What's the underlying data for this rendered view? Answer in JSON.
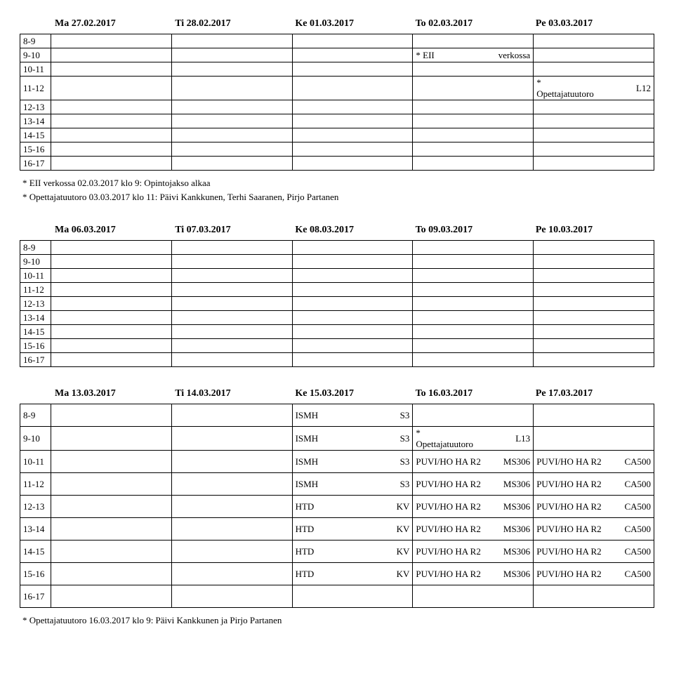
{
  "blocks": [
    {
      "headers": [
        "Ma 27.02.2017",
        "Ti 28.02.2017",
        "Ke 01.03.2017",
        "To 02.03.2017",
        "Pe 03.03.2017"
      ],
      "times": [
        "8-9",
        "9-10",
        "10-11",
        "11-12",
        "12-13",
        "13-14",
        "14-15",
        "15-16",
        "16-17"
      ],
      "tall": false,
      "cells": {
        "1": {
          "3": {
            "left": "* EII",
            "right": "verkossa"
          }
        },
        "3": {
          "4": {
            "left": "*\nOpettajatuutoro",
            "right": "L12",
            "multiline": true
          }
        }
      },
      "notes": [
        "* EII verkossa 02.03.2017 klo 9: Opintojakso alkaa",
        "* Opettajatuutoro 03.03.2017 klo 11: Päivi Kankkunen, Terhi Saaranen, Pirjo Partanen"
      ]
    },
    {
      "headers": [
        "Ma 06.03.2017",
        "Ti 07.03.2017",
        "Ke 08.03.2017",
        "To 09.03.2017",
        "Pe 10.03.2017"
      ],
      "times": [
        "8-9",
        "9-10",
        "10-11",
        "11-12",
        "12-13",
        "13-14",
        "14-15",
        "15-16",
        "16-17"
      ],
      "tall": false,
      "cells": {},
      "notes": []
    },
    {
      "headers": [
        "Ma 13.03.2017",
        "Ti 14.03.2017",
        "Ke 15.03.2017",
        "To 16.03.2017",
        "Pe 17.03.2017"
      ],
      "times": [
        "8-9",
        "9-10",
        "10-11",
        "11-12",
        "12-13",
        "13-14",
        "14-15",
        "15-16",
        "16-17"
      ],
      "tall": true,
      "cells": {
        "0": {
          "2": {
            "left": "ISMH",
            "right": "S3"
          }
        },
        "1": {
          "2": {
            "left": "ISMH",
            "right": "S3"
          },
          "3": {
            "left": "*\nOpettajatuutoro",
            "right": "L13",
            "multiline": true
          }
        },
        "2": {
          "2": {
            "left": "ISMH",
            "right": "S3"
          },
          "3": {
            "left": "PUVI/HO  HA R2",
            "right": "MS306"
          },
          "4": {
            "left": "PUVI/HO  HA R2",
            "right": "CA500"
          }
        },
        "3": {
          "2": {
            "left": "ISMH",
            "right": "S3"
          },
          "3": {
            "left": "PUVI/HO  HA R2",
            "right": "MS306"
          },
          "4": {
            "left": "PUVI/HO  HA R2",
            "right": "CA500"
          }
        },
        "4": {
          "2": {
            "left": "HTD",
            "right": "KV"
          },
          "3": {
            "left": "PUVI/HO  HA R2",
            "right": "MS306"
          },
          "4": {
            "left": "PUVI/HO  HA R2",
            "right": "CA500"
          }
        },
        "5": {
          "2": {
            "left": "HTD",
            "right": "KV"
          },
          "3": {
            "left": "PUVI/HO  HA R2",
            "right": "MS306"
          },
          "4": {
            "left": "PUVI/HO  HA R2",
            "right": "CA500"
          }
        },
        "6": {
          "2": {
            "left": "HTD",
            "right": "KV"
          },
          "3": {
            "left": "PUVI/HO  HA R2",
            "right": "MS306"
          },
          "4": {
            "left": "PUVI/HO  HA R2",
            "right": "CA500"
          }
        },
        "7": {
          "2": {
            "left": "HTD",
            "right": "KV"
          },
          "3": {
            "left": "PUVI/HO  HA R2",
            "right": "MS306"
          },
          "4": {
            "left": "PUVI/HO  HA R2",
            "right": "CA500"
          }
        }
      },
      "notes": [
        "* Opettajatuutoro 16.03.2017 klo 9: Päivi Kankkunen ja Pirjo Partanen"
      ]
    }
  ]
}
